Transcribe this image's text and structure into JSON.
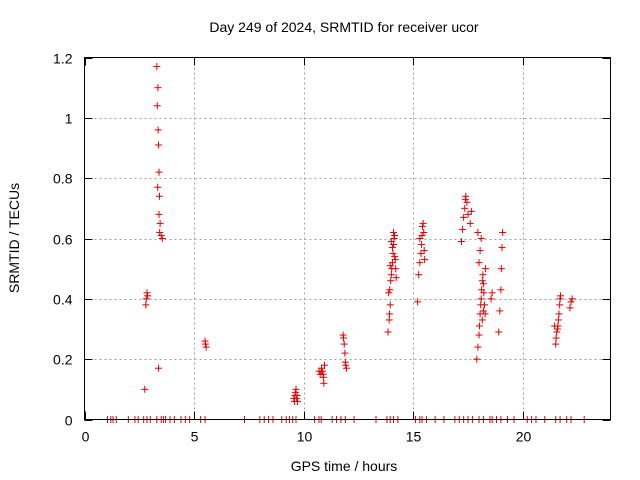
{
  "chart_data": {
    "type": "scatter",
    "title": "Day 249 of 2024, SRMTID for receiver ucor",
    "xlabel": "GPS time / hours",
    "ylabel": "SRMTID / TECUs",
    "xlim": [
      0,
      24
    ],
    "ylim": [
      0,
      1.2
    ],
    "xticks": [
      0,
      5,
      10,
      15,
      20
    ],
    "yticks": [
      0,
      0.2,
      0.4,
      0.6,
      0.8,
      1,
      1.2
    ],
    "grid": true,
    "marker": "plus",
    "color": "#e00000",
    "series": [
      {
        "name": "SRMTID",
        "points": [
          [
            1.05,
            0
          ],
          [
            1.2,
            0
          ],
          [
            1.3,
            0
          ],
          [
            1.45,
            0
          ],
          [
            2.0,
            0
          ],
          [
            2.3,
            0
          ],
          [
            2.45,
            0
          ],
          [
            2.7,
            0
          ],
          [
            2.85,
            0
          ],
          [
            3.0,
            0
          ],
          [
            3.3,
            0
          ],
          [
            3.5,
            0
          ],
          [
            3.6,
            0
          ],
          [
            3.7,
            0
          ],
          [
            3.9,
            0
          ],
          [
            4.1,
            0
          ],
          [
            4.4,
            0
          ],
          [
            4.6,
            0
          ],
          [
            4.8,
            0
          ],
          [
            5.3,
            0
          ],
          [
            5.5,
            0
          ],
          [
            7.3,
            0
          ],
          [
            8.0,
            0
          ],
          [
            8.2,
            0
          ],
          [
            8.4,
            0
          ],
          [
            8.6,
            0
          ],
          [
            9.0,
            0
          ],
          [
            9.2,
            0
          ],
          [
            9.35,
            0
          ],
          [
            9.5,
            0
          ],
          [
            9.65,
            0
          ],
          [
            10.5,
            0
          ],
          [
            10.7,
            0
          ],
          [
            10.8,
            0
          ],
          [
            11.3,
            0
          ],
          [
            11.5,
            0
          ],
          [
            11.7,
            0
          ],
          [
            11.9,
            0
          ],
          [
            12.3,
            0
          ],
          [
            13.3,
            0
          ],
          [
            13.8,
            0
          ],
          [
            13.95,
            0
          ],
          [
            14.1,
            0
          ],
          [
            14.3,
            0
          ],
          [
            15.1,
            0
          ],
          [
            15.3,
            0
          ],
          [
            15.4,
            0
          ],
          [
            15.6,
            0
          ],
          [
            16.0,
            0
          ],
          [
            16.4,
            0
          ],
          [
            16.9,
            0
          ],
          [
            17.1,
            0
          ],
          [
            17.3,
            0
          ],
          [
            17.5,
            0
          ],
          [
            17.7,
            0
          ],
          [
            18.0,
            0
          ],
          [
            18.2,
            0
          ],
          [
            18.5,
            0
          ],
          [
            18.6,
            0
          ],
          [
            18.8,
            0
          ],
          [
            19.0,
            0
          ],
          [
            19.3,
            0
          ],
          [
            19.6,
            0
          ],
          [
            20.2,
            0
          ],
          [
            20.4,
            0
          ],
          [
            20.6,
            0
          ],
          [
            21.0,
            0
          ],
          [
            21.5,
            0
          ],
          [
            21.7,
            0
          ],
          [
            22.0,
            0
          ],
          [
            22.2,
            0
          ],
          [
            22.8,
            0
          ],
          [
            2.75,
            0.1
          ],
          [
            2.8,
            0.38
          ],
          [
            2.82,
            0.4
          ],
          [
            2.85,
            0.42
          ],
          [
            2.88,
            0.41
          ],
          [
            3.3,
            1.17
          ],
          [
            3.35,
            1.1
          ],
          [
            3.32,
            1.04
          ],
          [
            3.36,
            0.96
          ],
          [
            3.38,
            0.91
          ],
          [
            3.4,
            0.82
          ],
          [
            3.34,
            0.77
          ],
          [
            3.42,
            0.74
          ],
          [
            3.4,
            0.68
          ],
          [
            3.45,
            0.65
          ],
          [
            3.43,
            0.62
          ],
          [
            3.5,
            0.61
          ],
          [
            3.55,
            0.6
          ],
          [
            3.38,
            0.17
          ],
          [
            5.5,
            0.26
          ],
          [
            5.52,
            0.25
          ],
          [
            5.55,
            0.24
          ],
          [
            9.55,
            0.07
          ],
          [
            9.6,
            0.08
          ],
          [
            9.62,
            0.09
          ],
          [
            9.65,
            0.1
          ],
          [
            9.68,
            0.07
          ],
          [
            9.7,
            0.08
          ],
          [
            9.72,
            0.06
          ],
          [
            9.58,
            0.06
          ],
          [
            10.75,
            0.15
          ],
          [
            10.8,
            0.16
          ],
          [
            10.82,
            0.17
          ],
          [
            10.85,
            0.16
          ],
          [
            10.88,
            0.15
          ],
          [
            10.9,
            0.14
          ],
          [
            10.92,
            0.12
          ],
          [
            10.95,
            0.18
          ],
          [
            10.7,
            0.16
          ],
          [
            11.8,
            0.28
          ],
          [
            11.82,
            0.27
          ],
          [
            11.85,
            0.25
          ],
          [
            11.88,
            0.22
          ],
          [
            11.9,
            0.19
          ],
          [
            11.92,
            0.18
          ],
          [
            11.95,
            0.17
          ],
          [
            13.85,
            0.29
          ],
          [
            13.9,
            0.33
          ],
          [
            13.92,
            0.35
          ],
          [
            13.95,
            0.38
          ],
          [
            13.88,
            0.42
          ],
          [
            13.93,
            0.43
          ],
          [
            13.97,
            0.46
          ],
          [
            14.0,
            0.48
          ],
          [
            14.02,
            0.5
          ],
          [
            14.05,
            0.52
          ],
          [
            14.08,
            0.55
          ],
          [
            14.1,
            0.58
          ],
          [
            14.12,
            0.6
          ],
          [
            14.15,
            0.61
          ],
          [
            14.18,
            0.53
          ],
          [
            14.2,
            0.5
          ],
          [
            14.22,
            0.47
          ],
          [
            14.0,
            0.59
          ],
          [
            14.05,
            0.57
          ],
          [
            14.1,
            0.62
          ],
          [
            13.95,
            0.51
          ],
          [
            14.15,
            0.54
          ],
          [
            15.2,
            0.39
          ],
          [
            15.25,
            0.48
          ],
          [
            15.3,
            0.52
          ],
          [
            15.35,
            0.55
          ],
          [
            15.38,
            0.58
          ],
          [
            15.4,
            0.61
          ],
          [
            15.42,
            0.64
          ],
          [
            15.45,
            0.65
          ],
          [
            15.48,
            0.62
          ],
          [
            15.5,
            0.56
          ],
          [
            15.52,
            0.53
          ],
          [
            15.3,
            0.6
          ],
          [
            17.2,
            0.59
          ],
          [
            17.25,
            0.63
          ],
          [
            17.3,
            0.67
          ],
          [
            17.35,
            0.7
          ],
          [
            17.38,
            0.73
          ],
          [
            17.4,
            0.74
          ],
          [
            17.45,
            0.72
          ],
          [
            17.5,
            0.68
          ],
          [
            17.6,
            0.65
          ],
          [
            17.65,
            0.69
          ],
          [
            17.9,
            0.2
          ],
          [
            17.95,
            0.24
          ],
          [
            18.0,
            0.28
          ],
          [
            18.02,
            0.31
          ],
          [
            18.05,
            0.35
          ],
          [
            18.08,
            0.38
          ],
          [
            18.1,
            0.4
          ],
          [
            18.12,
            0.43
          ],
          [
            18.15,
            0.46
          ],
          [
            18.18,
            0.48
          ],
          [
            18.2,
            0.45
          ],
          [
            18.22,
            0.42
          ],
          [
            18.25,
            0.38
          ],
          [
            18.0,
            0.52
          ],
          [
            18.05,
            0.56
          ],
          [
            18.1,
            0.6
          ],
          [
            17.95,
            0.62
          ],
          [
            18.3,
            0.5
          ],
          [
            18.28,
            0.35
          ],
          [
            18.15,
            0.33
          ],
          [
            18.2,
            0.36
          ],
          [
            18.55,
            0.4
          ],
          [
            18.6,
            0.42
          ],
          [
            18.9,
            0.29
          ],
          [
            18.95,
            0.36
          ],
          [
            19.0,
            0.43
          ],
          [
            19.02,
            0.5
          ],
          [
            19.05,
            0.57
          ],
          [
            19.08,
            0.62
          ],
          [
            21.5,
            0.25
          ],
          [
            21.52,
            0.27
          ],
          [
            21.55,
            0.29
          ],
          [
            21.58,
            0.3
          ],
          [
            21.6,
            0.31
          ],
          [
            21.62,
            0.33
          ],
          [
            21.65,
            0.35
          ],
          [
            21.68,
            0.38
          ],
          [
            21.7,
            0.4
          ],
          [
            21.72,
            0.41
          ],
          [
            21.45,
            0.31
          ],
          [
            22.15,
            0.37
          ],
          [
            22.2,
            0.39
          ],
          [
            22.25,
            0.4
          ]
        ]
      }
    ]
  }
}
